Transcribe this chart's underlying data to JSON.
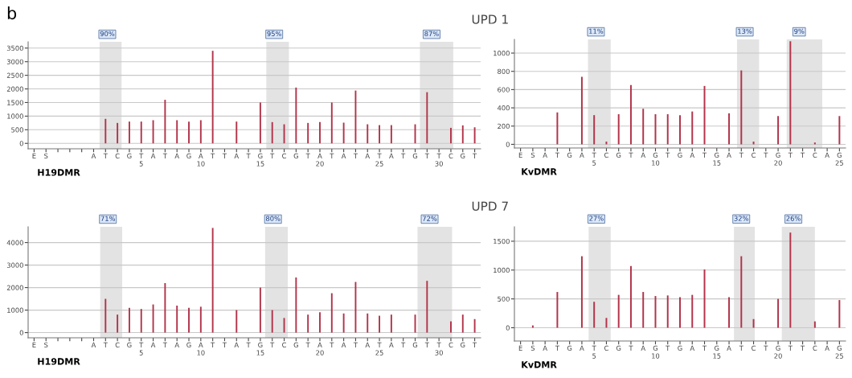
{
  "chart_data": [
    {
      "type": "bar",
      "xlabel": "H19DMR",
      "annotations": [
        "b"
      ],
      "grid": "y",
      "color": "#b2344a",
      "categories": [
        "E",
        "S",
        null,
        null,
        null,
        "A",
        "T",
        "C",
        "G",
        "T",
        "A",
        "T",
        "A",
        "G",
        "A",
        "T",
        "T",
        "A",
        "T",
        "G",
        "T",
        "C",
        "G",
        "T",
        "A",
        "T",
        "A",
        "T",
        "A",
        "T",
        "A",
        "T",
        "G",
        "T",
        "T",
        "C",
        "G",
        "T"
      ],
      "values": [
        0,
        0,
        0,
        0,
        0,
        0,
        900,
        750,
        800,
        800,
        850,
        1600,
        850,
        800,
        850,
        3400,
        0,
        800,
        0,
        1500,
        780,
        700,
        2050,
        750,
        780,
        1500,
        760,
        1940,
        700,
        670,
        670,
        0,
        700,
        1880,
        0,
        570,
        660,
        590
      ],
      "ylim": [
        -200,
        3730
      ],
      "yticks": [
        0,
        500,
        1000,
        1500,
        2000,
        2500,
        3000,
        3500
      ],
      "x2lim": [
        -4.5,
        33.5
      ],
      "x2ticks": [
        5,
        10,
        15,
        20,
        25,
        30
      ],
      "bands": [
        {
          "axis": "x2",
          "from": 1.5,
          "to": 3.35,
          "label": "90%",
          "color": "#e3e3e3"
        },
        {
          "axis": "x2",
          "from": 15.5,
          "to": 17.4,
          "label": "95%",
          "color": "#e3e3e3"
        },
        {
          "axis": "x2",
          "from": 28.4,
          "to": 31.2,
          "label": "87%",
          "color": "#e3e3e3"
        }
      ]
    },
    {
      "type": "bar",
      "title": "UPD 1",
      "xlabel": "KvDMR",
      "grid": "y",
      "color": "#b2344a",
      "categories": [
        "E",
        "S",
        "A",
        "T",
        "G",
        "A",
        "T",
        "C",
        "G",
        "T",
        "A",
        "G",
        "T",
        "G",
        "A",
        "T",
        "G",
        "A",
        "T",
        "C",
        "T",
        "G",
        "T",
        "T",
        "C",
        "A",
        "G"
      ],
      "values": [
        0,
        0,
        0,
        350,
        0,
        740,
        320,
        30,
        330,
        650,
        390,
        330,
        330,
        320,
        360,
        640,
        0,
        340,
        810,
        30,
        0,
        310,
        1130,
        0,
        20,
        0,
        310
      ],
      "ylim": [
        -40,
        1150
      ],
      "yticks": [
        0,
        200,
        400,
        600,
        800,
        1000
      ],
      "x2lim": [
        -1.5,
        25.5
      ],
      "x2ticks": [
        5,
        10,
        15,
        20,
        25
      ],
      "bands": [
        {
          "axis": "x2",
          "from": 4.5,
          "to": 6.35,
          "label": "11%",
          "color": "#e3e3e3"
        },
        {
          "axis": "x2",
          "from": 16.65,
          "to": 18.45,
          "label": "13%",
          "color": "#e3e3e3"
        },
        {
          "axis": "x2",
          "from": 20.7,
          "to": 23.6,
          "label": "9%",
          "color": "#e3e3e3"
        }
      ]
    },
    {
      "type": "bar",
      "xlabel": "H19DMR",
      "grid": "y",
      "color": "#b2344a",
      "categories": [
        "E",
        "S",
        null,
        null,
        null,
        "A",
        "T",
        "C",
        "G",
        "T",
        "A",
        "T",
        "A",
        "G",
        "A",
        "T",
        "T",
        "A",
        "T",
        "G",
        "T",
        "C",
        "G",
        "T",
        "A",
        "T",
        "A",
        "T",
        "A",
        "T",
        "A",
        "T",
        "G",
        "T",
        "T",
        "C",
        "G",
        "T"
      ],
      "values": [
        0,
        0,
        0,
        0,
        0,
        0,
        1500,
        800,
        1100,
        1050,
        1250,
        2200,
        1200,
        1100,
        1150,
        4650,
        0,
        1000,
        0,
        2000,
        1000,
        650,
        2450,
        800,
        900,
        1750,
        850,
        2250,
        850,
        750,
        800,
        0,
        800,
        2300,
        0,
        500,
        800,
        600
      ],
      "ylim": [
        -230,
        4700
      ],
      "yticks": [
        0,
        1000,
        2000,
        3000,
        4000
      ],
      "x2lim": [
        -4.5,
        33.5
      ],
      "x2ticks": [
        5,
        10,
        15,
        20,
        25,
        30
      ],
      "bands": [
        {
          "axis": "x2",
          "from": 1.55,
          "to": 3.4,
          "label": "71%",
          "color": "#e3e3e3"
        },
        {
          "axis": "x2",
          "from": 15.4,
          "to": 17.3,
          "label": "80%",
          "color": "#e3e3e3"
        },
        {
          "axis": "x2",
          "from": 28.2,
          "to": 31.1,
          "label": "72%",
          "color": "#e3e3e3"
        }
      ]
    },
    {
      "type": "bar",
      "title": "UPD 7",
      "xlabel": "KvDMR",
      "grid": "y",
      "color": "#b2344a",
      "categories": [
        "E",
        "S",
        "A",
        "T",
        "G",
        "A",
        "T",
        "C",
        "G",
        "T",
        "A",
        "G",
        "T",
        "G",
        "A",
        "T",
        "G",
        "A",
        "T",
        "C",
        "T",
        "G",
        "T",
        "T",
        "C",
        "A",
        "G"
      ],
      "values": [
        0,
        40,
        0,
        620,
        0,
        1240,
        450,
        170,
        570,
        1070,
        620,
        550,
        560,
        530,
        570,
        1010,
        0,
        530,
        1240,
        150,
        0,
        500,
        1650,
        0,
        110,
        0,
        480
      ],
      "ylim": [
        -230,
        1750
      ],
      "yticks": [
        0,
        500,
        1000,
        1500
      ],
      "x2lim": [
        -1.5,
        25.5
      ],
      "x2ticks": [
        5,
        10,
        15,
        20,
        25
      ],
      "bands": [
        {
          "axis": "x2",
          "from": 4.55,
          "to": 6.35,
          "label": "27%",
          "color": "#e3e3e3"
        },
        {
          "axis": "x2",
          "from": 16.4,
          "to": 18.1,
          "label": "32%",
          "color": "#e3e3e3"
        },
        {
          "axis": "x2",
          "from": 20.3,
          "to": 23.0,
          "label": "26%",
          "color": "#e3e3e3"
        }
      ]
    }
  ]
}
